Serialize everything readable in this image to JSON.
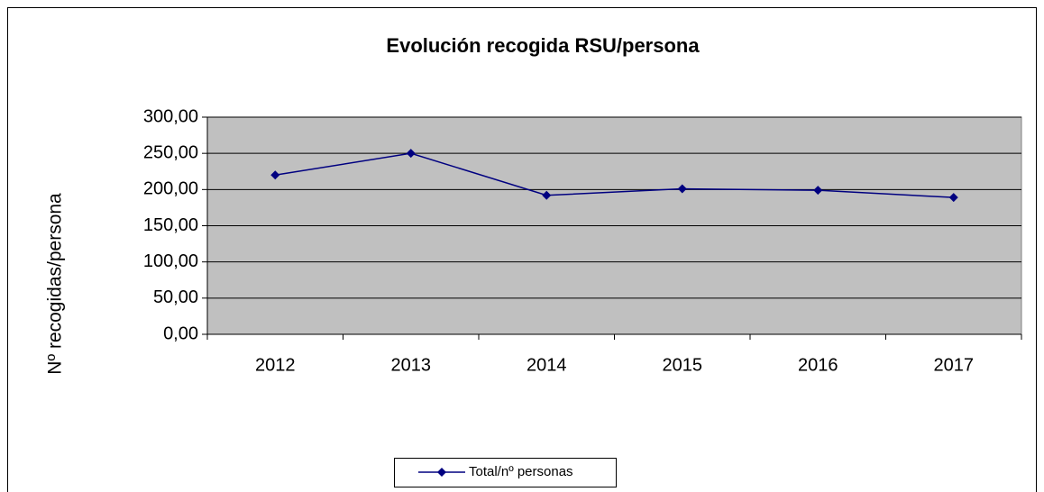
{
  "chart_data": {
    "type": "line",
    "title": "Evolución recogida RSU/persona",
    "y_label": "Nº recogidas/persona",
    "categories": [
      "2012",
      "2013",
      "2014",
      "2015",
      "2016",
      "2017"
    ],
    "series": [
      {
        "name": "Total/nº personas",
        "color": "#000080",
        "values": [
          220,
          250,
          192,
          201,
          199,
          189
        ]
      }
    ],
    "ylim": [
      0,
      300
    ],
    "yticks": [
      {
        "value": 0,
        "label": "0,00"
      },
      {
        "value": 50,
        "label": "50,00"
      },
      {
        "value": 100,
        "label": "100,00"
      },
      {
        "value": 150,
        "label": "150,00"
      },
      {
        "value": 200,
        "label": "200,00"
      },
      {
        "value": 250,
        "label": "250,00"
      },
      {
        "value": 300,
        "label": "300,00"
      }
    ],
    "grid": true,
    "legend": "bottom"
  }
}
